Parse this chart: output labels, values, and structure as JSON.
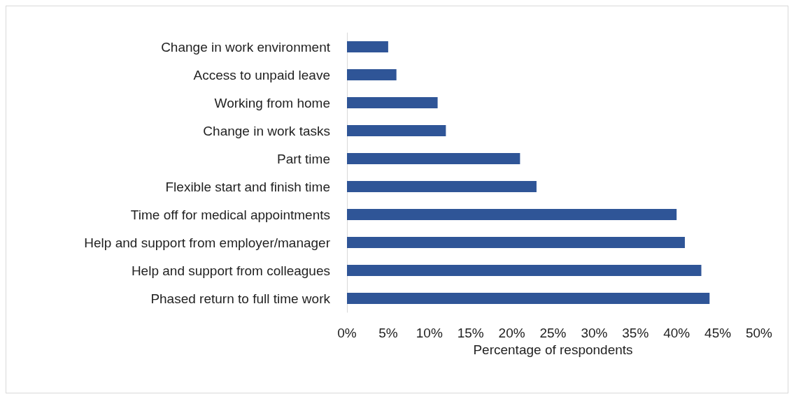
{
  "chart_data": {
    "type": "bar",
    "orientation": "horizontal",
    "xlabel": "Percentage of respondents",
    "categories": [
      "Change in work environment",
      "Access to unpaid leave",
      "Working from home",
      "Change in work tasks",
      "Part time",
      "Flexible start and finish time",
      "Time off for medical appointments",
      "Help and support from employer/manager",
      "Help and support from colleagues",
      "Phased return to full time work"
    ],
    "values": [
      5,
      6,
      11,
      12,
      21,
      23,
      40,
      41,
      43,
      44
    ],
    "color": "#2f5597",
    "xlim": [
      0,
      50
    ],
    "xticks": [
      {
        "value": 0,
        "label": "0%"
      },
      {
        "value": 5,
        "label": "5%"
      },
      {
        "value": 10,
        "label": "10%"
      },
      {
        "value": 15,
        "label": "15%"
      },
      {
        "value": 20,
        "label": "20%"
      },
      {
        "value": 25,
        "label": "25%"
      },
      {
        "value": 30,
        "label": "30%"
      },
      {
        "value": 35,
        "label": "35%"
      },
      {
        "value": 40,
        "label": "40%"
      },
      {
        "value": 45,
        "label": "45%"
      },
      {
        "value": 50,
        "label": "50%"
      }
    ],
    "data_labels": false
  }
}
